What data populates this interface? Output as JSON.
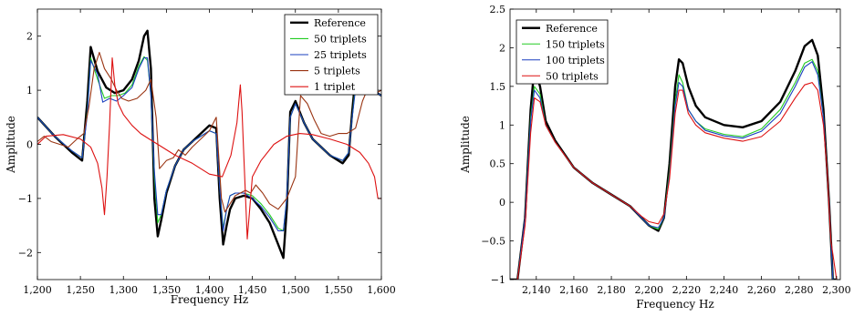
{
  "chart_data": [
    {
      "type": "line",
      "xlabel": "Frequency Hz",
      "ylabel": "Amplitude",
      "xlim": [
        1200,
        1600
      ],
      "ylim": [
        -2.5,
        2.5
      ],
      "xticks": [
        1200,
        1250,
        1300,
        1350,
        1400,
        1450,
        1500,
        1550,
        1600
      ],
      "xtick_labels": [
        "1,200",
        "1,250",
        "1,300",
        "1,350",
        "1,400",
        "1,450",
        "1,500",
        "1,550",
        "1,600"
      ],
      "yticks": [
        -2,
        -1,
        0,
        1,
        2
      ],
      "ytick_labels": [
        "−2",
        "−1",
        "0",
        "1",
        "2"
      ],
      "grid": false,
      "legend_position": "top-right",
      "series": [
        {
          "name": "Reference",
          "color": "#000000",
          "width": 2.4,
          "x": [
            1200,
            1220,
            1240,
            1252,
            1258,
            1262,
            1270,
            1280,
            1290,
            1300,
            1310,
            1318,
            1324,
            1328,
            1332,
            1336,
            1340,
            1344,
            1350,
            1360,
            1370,
            1380,
            1390,
            1400,
            1408,
            1412,
            1416,
            1420,
            1424,
            1430,
            1440,
            1450,
            1460,
            1470,
            1480,
            1486,
            1490,
            1494,
            1500,
            1510,
            1520,
            1540,
            1555,
            1562,
            1566,
            1572,
            1580,
            1590,
            1600
          ],
          "y": [
            0.5,
            0.15,
            -0.15,
            -0.3,
            0.8,
            1.8,
            1.35,
            1.05,
            0.95,
            1.0,
            1.2,
            1.55,
            2.0,
            2.1,
            1.4,
            -1.0,
            -1.7,
            -1.4,
            -0.9,
            -0.4,
            -0.1,
            0.05,
            0.2,
            0.35,
            0.3,
            -1.0,
            -1.85,
            -1.5,
            -1.2,
            -1.0,
            -0.95,
            -1.0,
            -1.2,
            -1.45,
            -1.85,
            -2.1,
            -1.2,
            0.6,
            0.8,
            0.4,
            0.1,
            -0.2,
            -0.35,
            -0.2,
            0.6,
            1.6,
            1.2,
            1.0,
            0.9
          ]
        },
        {
          "name": "50 triplets",
          "color": "#22cc22",
          "width": 1.1,
          "x": [
            1200,
            1220,
            1240,
            1252,
            1258,
            1262,
            1270,
            1278,
            1286,
            1294,
            1302,
            1310,
            1318,
            1324,
            1328,
            1332,
            1336,
            1340,
            1344,
            1350,
            1360,
            1370,
            1380,
            1390,
            1400,
            1408,
            1412,
            1416,
            1420,
            1424,
            1430,
            1440,
            1450,
            1460,
            1470,
            1480,
            1486,
            1490,
            1494,
            1500,
            1510,
            1520,
            1540,
            1555,
            1562,
            1566,
            1572,
            1580,
            1590,
            1600
          ],
          "y": [
            0.5,
            0.15,
            -0.12,
            -0.25,
            0.6,
            1.6,
            1.2,
            0.85,
            0.9,
            0.9,
            0.95,
            1.1,
            1.45,
            1.62,
            1.55,
            0.9,
            -0.6,
            -1.45,
            -1.3,
            -0.85,
            -0.4,
            -0.1,
            0.05,
            0.15,
            0.25,
            0.2,
            -0.8,
            -1.55,
            -1.2,
            -0.95,
            -0.9,
            -0.9,
            -0.95,
            -1.1,
            -1.3,
            -1.55,
            -1.6,
            -1.0,
            0.5,
            0.75,
            0.4,
            0.1,
            -0.2,
            -0.3,
            -0.15,
            0.5,
            1.4,
            1.1,
            1.0,
            0.9
          ]
        },
        {
          "name": "25 triplets",
          "color": "#1a3fbf",
          "width": 1.1,
          "x": [
            1200,
            1220,
            1240,
            1252,
            1258,
            1262,
            1270,
            1276,
            1284,
            1292,
            1300,
            1310,
            1318,
            1324,
            1328,
            1332,
            1336,
            1340,
            1344,
            1350,
            1360,
            1370,
            1380,
            1390,
            1400,
            1408,
            1412,
            1416,
            1420,
            1424,
            1430,
            1440,
            1450,
            1460,
            1470,
            1480,
            1486,
            1490,
            1494,
            1500,
            1510,
            1520,
            1540,
            1555,
            1562,
            1566,
            1572,
            1580,
            1590,
            1600
          ],
          "y": [
            0.5,
            0.15,
            -0.12,
            -0.25,
            0.55,
            1.55,
            1.3,
            0.78,
            0.85,
            0.8,
            0.9,
            1.05,
            1.4,
            1.6,
            1.6,
            0.9,
            -0.5,
            -1.3,
            -1.3,
            -0.85,
            -0.4,
            -0.1,
            0.05,
            0.15,
            0.25,
            0.2,
            -0.8,
            -1.6,
            -1.2,
            -0.95,
            -0.9,
            -0.9,
            -1.0,
            -1.15,
            -1.35,
            -1.6,
            -1.6,
            -1.0,
            0.5,
            0.75,
            0.4,
            0.1,
            -0.2,
            -0.3,
            -0.15,
            0.5,
            1.3,
            1.05,
            1.0,
            0.9
          ]
        },
        {
          "name": "5 triplets",
          "color": "#993311",
          "width": 1.1,
          "x": [
            1200,
            1208,
            1216,
            1226,
            1236,
            1246,
            1254,
            1260,
            1266,
            1272,
            1278,
            1286,
            1292,
            1298,
            1306,
            1316,
            1326,
            1332,
            1338,
            1342,
            1350,
            1358,
            1364,
            1372,
            1380,
            1390,
            1400,
            1408,
            1414,
            1418,
            1424,
            1430,
            1436,
            1442,
            1448,
            1454,
            1462,
            1470,
            1480,
            1490,
            1500,
            1506,
            1514,
            1522,
            1530,
            1540,
            1550,
            1560,
            1570,
            1578,
            1586,
            1594,
            1600
          ],
          "y": [
            0.05,
            0.15,
            0.05,
            0.0,
            -0.05,
            0.1,
            0.2,
            0.7,
            1.4,
            1.7,
            1.4,
            1.2,
            1.0,
            0.85,
            0.8,
            0.85,
            1.0,
            1.2,
            0.5,
            -0.45,
            -0.3,
            -0.25,
            -0.1,
            -0.2,
            -0.05,
            0.1,
            0.25,
            0.5,
            -1.0,
            -1.25,
            -1.1,
            -0.95,
            -0.9,
            -0.85,
            -0.9,
            -0.75,
            -0.9,
            -1.1,
            -1.2,
            -1.0,
            -0.6,
            0.9,
            0.75,
            0.45,
            0.2,
            0.15,
            0.2,
            0.2,
            0.3,
            0.8,
            1.1,
            0.95,
            1.0
          ]
        },
        {
          "name": "1 triplet",
          "color": "#dd1111",
          "width": 1.1,
          "x": [
            1200,
            1210,
            1230,
            1250,
            1262,
            1270,
            1275,
            1278,
            1281,
            1284,
            1287,
            1290,
            1294,
            1300,
            1310,
            1320,
            1330,
            1345,
            1360,
            1380,
            1400,
            1415,
            1425,
            1432,
            1436,
            1438,
            1440,
            1444,
            1450,
            1460,
            1475,
            1490,
            1505,
            1520,
            1540,
            1560,
            1575,
            1585,
            1592,
            1596,
            1600
          ],
          "y": [
            0.0,
            0.15,
            0.18,
            0.1,
            -0.05,
            -0.35,
            -0.8,
            -1.3,
            -0.6,
            0.4,
            1.6,
            1.1,
            0.75,
            0.55,
            0.35,
            0.2,
            0.1,
            -0.05,
            -0.2,
            -0.35,
            -0.55,
            -0.6,
            -0.2,
            0.4,
            1.1,
            0.6,
            -0.2,
            -1.75,
            -0.6,
            -0.3,
            0.0,
            0.15,
            0.2,
            0.18,
            0.1,
            0.0,
            -0.15,
            -0.35,
            -0.6,
            -1.0,
            -1.0
          ]
        }
      ]
    },
    {
      "type": "line",
      "xlabel": "Frequency Hz",
      "ylabel": "Amplitude",
      "xlim": [
        2126,
        2302
      ],
      "ylim": [
        -1,
        2.5
      ],
      "xticks": [
        2140,
        2160,
        2180,
        2200,
        2220,
        2240,
        2260,
        2280,
        2300
      ],
      "xtick_labels": [
        "2,140",
        "2,160",
        "2,180",
        "2,200",
        "2,220",
        "2,240",
        "2,260",
        "2,280",
        "2,300"
      ],
      "yticks": [
        -1,
        -0.5,
        0,
        0.5,
        1,
        1.5,
        2,
        2.5
      ],
      "ytick_labels": [
        "−1",
        "−0.5",
        "0",
        "0.5",
        "1",
        "1.5",
        "2",
        "2.5"
      ],
      "grid": false,
      "legend_position": "top-left",
      "series": [
        {
          "name": "Reference",
          "color": "#000000",
          "width": 2.4,
          "x": [
            2126,
            2130,
            2134,
            2137,
            2139,
            2142,
            2145,
            2150,
            2160,
            2170,
            2180,
            2190,
            2196,
            2200,
            2205,
            2208,
            2211,
            2214,
            2216,
            2218,
            2221,
            2225,
            2230,
            2240,
            2250,
            2260,
            2270,
            2278,
            2283,
            2287,
            2290,
            2293,
            2296,
            2298,
            2300
          ],
          "y": [
            -1.0,
            -1.0,
            -0.2,
            1.2,
            1.75,
            1.5,
            1.05,
            0.8,
            0.45,
            0.25,
            0.1,
            -0.05,
            -0.2,
            -0.3,
            -0.37,
            -0.2,
            0.5,
            1.5,
            1.85,
            1.8,
            1.5,
            1.25,
            1.1,
            1.0,
            0.97,
            1.05,
            1.3,
            1.7,
            2.02,
            2.1,
            1.9,
            1.2,
            0.0,
            -1.0,
            -1.0
          ]
        },
        {
          "name": "150 triplets",
          "color": "#22cc22",
          "width": 1.1,
          "x": [
            2126,
            2130,
            2134,
            2137,
            2139,
            2142,
            2145,
            2150,
            2160,
            2170,
            2180,
            2190,
            2196,
            2200,
            2205,
            2208,
            2211,
            2214,
            2216,
            2218,
            2221,
            2225,
            2230,
            2240,
            2250,
            2260,
            2270,
            2278,
            2283,
            2287,
            2290,
            2293,
            2296,
            2298,
            2300
          ],
          "y": [
            -1.0,
            -1.0,
            -0.2,
            1.1,
            1.5,
            1.4,
            1.0,
            0.78,
            0.45,
            0.25,
            0.1,
            -0.05,
            -0.2,
            -0.3,
            -0.35,
            -0.2,
            0.4,
            1.3,
            1.65,
            1.55,
            1.2,
            1.05,
            0.95,
            0.88,
            0.85,
            0.95,
            1.2,
            1.55,
            1.8,
            1.85,
            1.7,
            1.1,
            0.0,
            -1.0,
            -1.0
          ]
        },
        {
          "name": "100 triplets",
          "color": "#1a3fbf",
          "width": 1.1,
          "x": [
            2126,
            2130,
            2134,
            2137,
            2139,
            2142,
            2145,
            2150,
            2160,
            2170,
            2180,
            2190,
            2196,
            2200,
            2205,
            2208,
            2211,
            2214,
            2216,
            2218,
            2221,
            2225,
            2230,
            2240,
            2250,
            2260,
            2270,
            2278,
            2283,
            2287,
            2290,
            2293,
            2296,
            2298,
            2300
          ],
          "y": [
            -1.0,
            -1.0,
            -0.2,
            1.05,
            1.45,
            1.35,
            1.0,
            0.78,
            0.45,
            0.25,
            0.1,
            -0.05,
            -0.2,
            -0.3,
            -0.33,
            -0.2,
            0.35,
            1.25,
            1.55,
            1.5,
            1.2,
            1.05,
            0.93,
            0.86,
            0.83,
            0.92,
            1.15,
            1.5,
            1.75,
            1.82,
            1.65,
            1.1,
            0.0,
            -1.0,
            -1.0
          ]
        },
        {
          "name": "50 triplets",
          "color": "#dd1111",
          "width": 1.1,
          "x": [
            2126,
            2130,
            2134,
            2137,
            2139,
            2142,
            2145,
            2150,
            2160,
            2170,
            2180,
            2190,
            2196,
            2200,
            2205,
            2208,
            2211,
            2214,
            2216,
            2218,
            2221,
            2225,
            2230,
            2240,
            2250,
            2260,
            2270,
            2278,
            2283,
            2287,
            2290,
            2293,
            2295,
            2297,
            2300
          ],
          "y": [
            -1.0,
            -1.0,
            -0.3,
            0.9,
            1.35,
            1.3,
            1.0,
            0.78,
            0.45,
            0.25,
            0.1,
            -0.05,
            -0.18,
            -0.25,
            -0.28,
            -0.15,
            0.3,
            1.15,
            1.45,
            1.45,
            1.15,
            1.0,
            0.9,
            0.83,
            0.79,
            0.85,
            1.05,
            1.35,
            1.52,
            1.55,
            1.45,
            1.0,
            0.4,
            -0.5,
            -1.0
          ]
        }
      ]
    }
  ]
}
